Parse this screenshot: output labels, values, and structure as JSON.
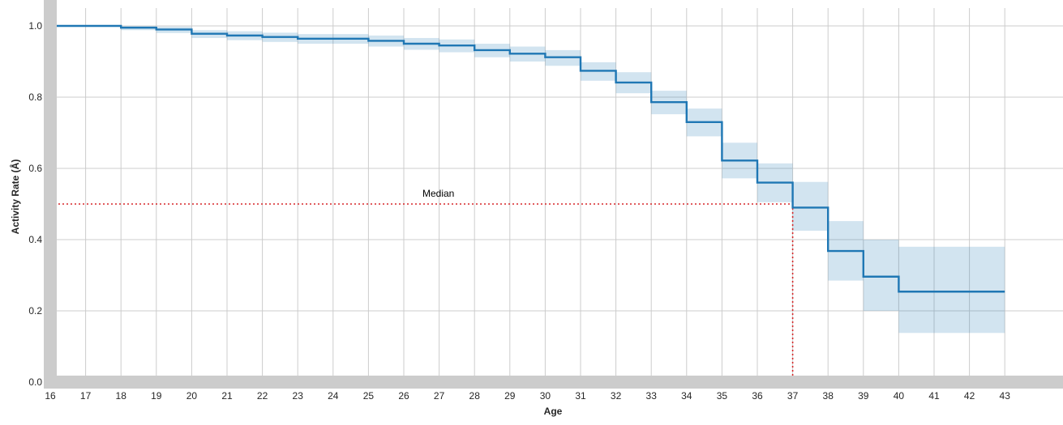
{
  "chart_data": {
    "type": "line",
    "subtype": "step survival curve with confidence band",
    "xlabel": "Age",
    "ylabel": "Activity Rate (Å)",
    "xlim": [
      16,
      44.5
    ],
    "ylim": [
      0,
      1.05
    ],
    "x_ticks": [
      "16",
      "17",
      "18",
      "19",
      "20",
      "21",
      "22",
      "23",
      "24",
      "25",
      "26",
      "27",
      "28",
      "29",
      "30",
      "31",
      "32",
      "33",
      "34",
      "35",
      "36",
      "37",
      "38",
      "39",
      "40",
      "41",
      "42",
      "43"
    ],
    "y_ticks": [
      "0.0",
      "0.2",
      "0.4",
      "0.6",
      "0.8",
      "1.0"
    ],
    "grid": true,
    "series": [
      {
        "x": [
          16,
          18,
          19,
          20,
          21,
          22,
          23,
          24,
          25,
          26,
          27,
          28,
          29,
          30,
          31,
          32,
          33,
          34,
          35,
          36,
          37,
          38,
          39,
          40,
          43
        ],
        "y": [
          1.0,
          0.995,
          0.99,
          0.978,
          0.973,
          0.969,
          0.964,
          0.964,
          0.958,
          0.95,
          0.945,
          0.932,
          0.922,
          0.912,
          0.874,
          0.841,
          0.786,
          0.73,
          0.622,
          0.56,
          0.49,
          0.368,
          0.296,
          0.254,
          0.254
        ],
        "lower": [
          1.0,
          0.988,
          0.98,
          0.966,
          0.96,
          0.955,
          0.95,
          0.95,
          0.942,
          0.933,
          0.926,
          0.912,
          0.9,
          0.888,
          0.846,
          0.811,
          0.752,
          0.69,
          0.572,
          0.505,
          0.425,
          0.285,
          0.2,
          0.138,
          0.135
        ],
        "upper": [
          1.0,
          1.0,
          0.998,
          0.988,
          0.985,
          0.981,
          0.977,
          0.977,
          0.973,
          0.966,
          0.962,
          0.95,
          0.942,
          0.932,
          0.898,
          0.87,
          0.818,
          0.768,
          0.672,
          0.614,
          0.562,
          0.452,
          0.4,
          0.38,
          0.376
        ],
        "color": "#1f77b4",
        "band_color": "#1f77b4"
      }
    ],
    "median": {
      "label": "Median",
      "y": 0.5,
      "x": 37,
      "color": "#d62728"
    },
    "axis_frame_color": "#cccccc",
    "grid_color": "#cccccc"
  }
}
